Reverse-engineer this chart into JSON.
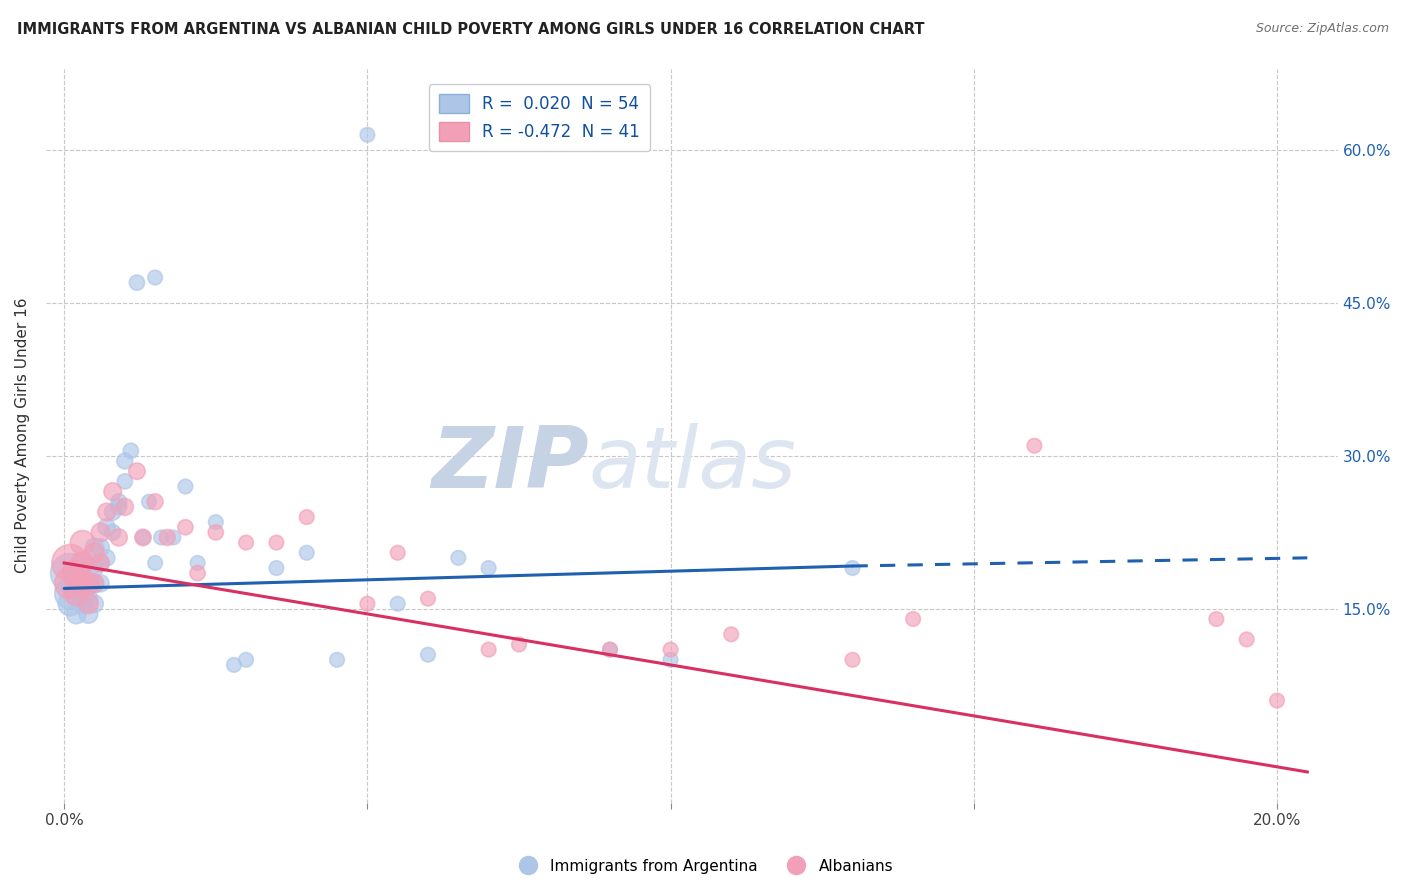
{
  "title": "IMMIGRANTS FROM ARGENTINA VS ALBANIAN CHILD POVERTY AMONG GIRLS UNDER 16 CORRELATION CHART",
  "source": "Source: ZipAtlas.com",
  "ylabel": "Child Poverty Among Girls Under 16",
  "right_ytick_positions": [
    0.15,
    0.3,
    0.45,
    0.6
  ],
  "right_ytick_labels": [
    "15.0%",
    "30.0%",
    "45.0%",
    "60.0%"
  ],
  "xtick_positions": [
    0.0,
    0.05,
    0.1,
    0.15,
    0.2
  ],
  "xtick_labels": [
    "0.0%",
    "",
    "",
    "",
    "20.0%"
  ],
  "xlim": [
    -0.003,
    0.21
  ],
  "ylim": [
    -0.04,
    0.68
  ],
  "legend_r1": "R =  0.020  N = 54",
  "legend_r2": "R = -0.472  N = 41",
  "blue_color": "#adc6e8",
  "pink_color": "#f2a0b8",
  "blue_line_color": "#2060b0",
  "pink_line_color": "#d83060",
  "blue_line_solid": {
    "x0": 0.0,
    "x1": 0.13,
    "y0": 0.17,
    "y1": 0.192
  },
  "blue_line_dashed": {
    "x0": 0.13,
    "x1": 0.205,
    "y0": 0.192,
    "y1": 0.2
  },
  "pink_line": {
    "x0": 0.0,
    "x1": 0.205,
    "y0": 0.195,
    "y1": -0.01
  },
  "watermark_zip": "ZIP",
  "watermark_atlas": "atlas",
  "watermark_color": "#cdd8e8",
  "background_color": "#ffffff",
  "grid_color": "#c8c8c8",
  "blue_scatter_x": [
    0.001,
    0.001,
    0.001,
    0.002,
    0.002,
    0.002,
    0.002,
    0.003,
    0.003,
    0.003,
    0.003,
    0.004,
    0.004,
    0.004,
    0.004,
    0.005,
    0.005,
    0.005,
    0.005,
    0.006,
    0.006,
    0.006,
    0.007,
    0.007,
    0.008,
    0.008,
    0.009,
    0.009,
    0.01,
    0.01,
    0.011,
    0.012,
    0.013,
    0.014,
    0.015,
    0.015,
    0.016,
    0.018,
    0.02,
    0.022,
    0.025,
    0.028,
    0.03,
    0.035,
    0.04,
    0.045,
    0.05,
    0.055,
    0.06,
    0.065,
    0.07,
    0.09,
    0.1,
    0.13
  ],
  "blue_scatter_y": [
    0.185,
    0.165,
    0.155,
    0.185,
    0.175,
    0.165,
    0.145,
    0.175,
    0.165,
    0.195,
    0.155,
    0.19,
    0.175,
    0.16,
    0.145,
    0.21,
    0.19,
    0.175,
    0.155,
    0.21,
    0.195,
    0.175,
    0.23,
    0.2,
    0.245,
    0.225,
    0.25,
    0.255,
    0.295,
    0.275,
    0.305,
    0.47,
    0.22,
    0.255,
    0.195,
    0.475,
    0.22,
    0.22,
    0.27,
    0.195,
    0.235,
    0.095,
    0.1,
    0.19,
    0.205,
    0.1,
    0.615,
    0.155,
    0.105,
    0.2,
    0.19,
    0.11,
    0.1,
    0.19
  ],
  "blue_scatter_s": [
    800,
    500,
    300,
    400,
    300,
    250,
    200,
    300,
    250,
    200,
    200,
    200,
    180,
    180,
    180,
    180,
    160,
    160,
    160,
    160,
    150,
    150,
    150,
    140,
    140,
    130,
    130,
    130,
    130,
    120,
    120,
    120,
    110,
    110,
    110,
    110,
    110,
    110,
    110,
    110,
    110,
    110,
    110,
    110,
    110,
    110,
    110,
    110,
    110,
    110,
    110,
    110,
    110,
    110
  ],
  "pink_scatter_x": [
    0.001,
    0.001,
    0.002,
    0.002,
    0.003,
    0.003,
    0.003,
    0.004,
    0.004,
    0.005,
    0.005,
    0.006,
    0.006,
    0.007,
    0.008,
    0.009,
    0.01,
    0.012,
    0.013,
    0.015,
    0.017,
    0.02,
    0.022,
    0.025,
    0.03,
    0.035,
    0.04,
    0.05,
    0.055,
    0.06,
    0.07,
    0.075,
    0.09,
    0.1,
    0.11,
    0.13,
    0.14,
    0.16,
    0.19,
    0.195,
    0.2
  ],
  "pink_scatter_y": [
    0.195,
    0.175,
    0.185,
    0.165,
    0.215,
    0.195,
    0.175,
    0.175,
    0.155,
    0.205,
    0.175,
    0.225,
    0.195,
    0.245,
    0.265,
    0.22,
    0.25,
    0.285,
    0.22,
    0.255,
    0.22,
    0.23,
    0.185,
    0.225,
    0.215,
    0.215,
    0.24,
    0.155,
    0.205,
    0.16,
    0.11,
    0.115,
    0.11,
    0.11,
    0.125,
    0.1,
    0.14,
    0.31,
    0.14,
    0.12,
    0.06
  ],
  "pink_scatter_s": [
    700,
    500,
    400,
    300,
    300,
    250,
    200,
    250,
    200,
    200,
    180,
    180,
    160,
    160,
    160,
    150,
    150,
    140,
    140,
    130,
    130,
    120,
    120,
    120,
    110,
    110,
    110,
    110,
    110,
    110,
    110,
    110,
    110,
    110,
    110,
    110,
    110,
    110,
    110,
    110,
    110
  ]
}
